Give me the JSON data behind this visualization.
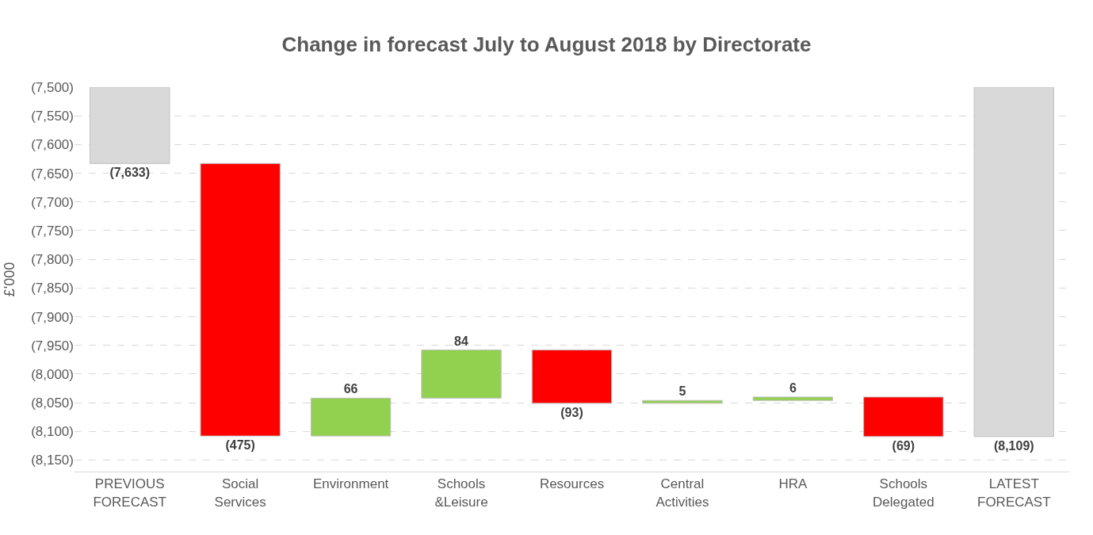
{
  "chart_data": {
    "type": "bar",
    "title": "Change in forecast July to August 2018 by Directorate",
    "ylabel": "£'000",
    "categories": [
      "PREVIOUS FORECAST",
      "Social Services",
      "Environment",
      "Schools &Leisure",
      "Resources",
      "Central Activities",
      "HRA",
      "Schools Delegated",
      "LATEST FORECAST"
    ],
    "base": [
      -7500,
      -7633,
      -8108,
      -8042,
      -7958,
      -8051,
      -8046,
      -8040,
      -7500
    ],
    "values": [
      -133,
      -475,
      66,
      84,
      -93,
      5,
      6,
      -69,
      -609
    ],
    "value_labels": [
      "(7,633)",
      "(475)",
      "66",
      "84",
      "(93)",
      "5",
      "6",
      "(69)",
      "(8,109)"
    ],
    "colors": [
      "#d9d9d9",
      "#ff0000",
      "#92d050",
      "#92d050",
      "#ff0000",
      "#92d050",
      "#92d050",
      "#ff0000",
      "#d9d9d9"
    ],
    "ylim": [
      -8170,
      -7500
    ],
    "yticks": [
      {
        "value": -7500,
        "label": "(7,500)"
      },
      {
        "value": -7550,
        "label": "(7,550)"
      },
      {
        "value": -7600,
        "label": "(7,600)"
      },
      {
        "value": -7650,
        "label": "(7,650)"
      },
      {
        "value": -7700,
        "label": "(7,700)"
      },
      {
        "value": -7750,
        "label": "(7,750)"
      },
      {
        "value": -7800,
        "label": "(7,800)"
      },
      {
        "value": -7850,
        "label": "(7,850)"
      },
      {
        "value": -7900,
        "label": "(7,900)"
      },
      {
        "value": -7950,
        "label": "(7,950)"
      },
      {
        "value": -8000,
        "label": "(8,000)"
      },
      {
        "value": -8050,
        "label": "(8,050)"
      },
      {
        "value": -8100,
        "label": "(8,100)"
      },
      {
        "value": -8150,
        "label": "(8,150)"
      }
    ],
    "grid": "y"
  }
}
